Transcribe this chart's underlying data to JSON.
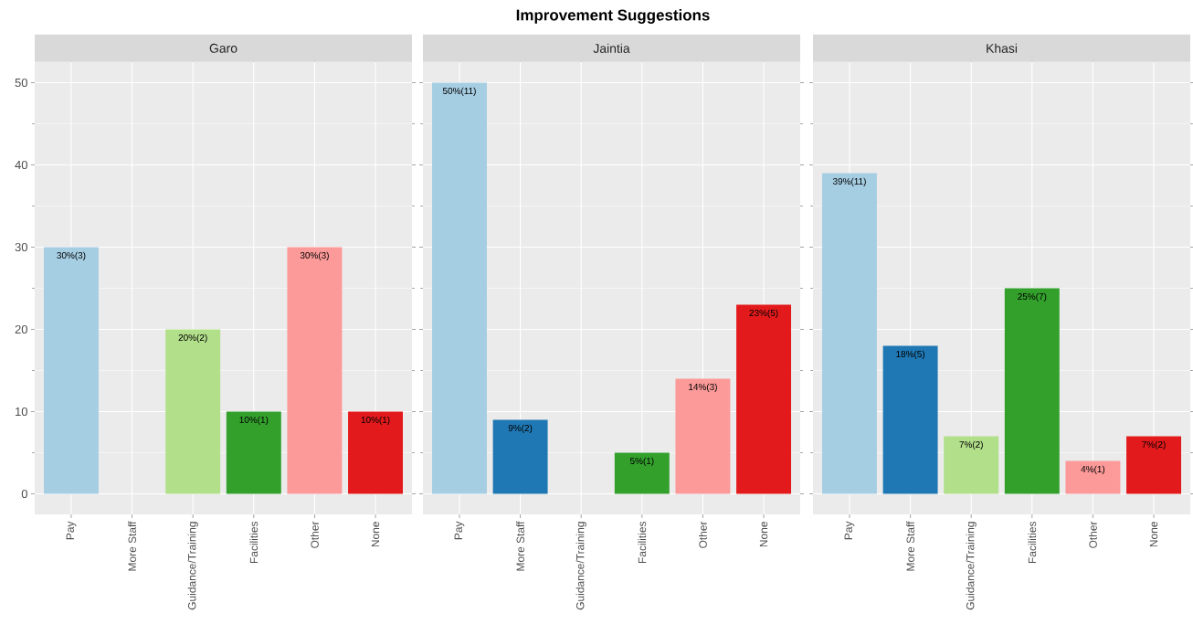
{
  "chart_data": [
    {
      "type": "bar",
      "subtitle": "Garo",
      "categories": [
        "Pay",
        "More Staff",
        "Guidance/Training",
        "Facilities",
        "Other",
        "None"
      ],
      "values": [
        30,
        null,
        20,
        10,
        30,
        10
      ],
      "colors": [
        "#a6cee3",
        "#1f78b4",
        "#b2df8a",
        "#33a02c",
        "#fb9a99",
        "#e31a1c"
      ],
      "value_labels": [
        "30%(3)",
        null,
        "20%(2)",
        "10%(1)",
        "30%(3)",
        "10%(1)"
      ],
      "ylim": [
        -2.5,
        52.5
      ],
      "yticks": [
        0,
        10,
        20,
        30,
        40,
        50
      ],
      "grid": true
    },
    {
      "type": "bar",
      "title": "Improvement Suggestions",
      "subtitle": "Jaintia",
      "categories": [
        "Pay",
        "More Staff",
        "Guidance/Training",
        "Facilities",
        "Other",
        "None"
      ],
      "values": [
        50,
        9,
        null,
        5,
        14,
        23
      ],
      "colors": [
        "#a6cee3",
        "#1f78b4",
        "#b2df8a",
        "#33a02c",
        "#fb9a99",
        "#e31a1c"
      ],
      "value_labels": [
        "50%(11)",
        "9%(2)",
        null,
        "5%(1)",
        "14%(3)",
        "23%(5)"
      ],
      "ylim": [
        -2.5,
        52.5
      ],
      "yticks": [
        0,
        10,
        20,
        30,
        40,
        50
      ],
      "grid": true,
      "tick_labels": "x"
    },
    {
      "type": "bar",
      "subtitle": "Khasi",
      "categories": [
        "Pay",
        "More Staff",
        "Guidance/Training",
        "Facilities",
        "Other",
        "None"
      ],
      "values": [
        39,
        18,
        7,
        25,
        4,
        7
      ],
      "colors": [
        "#a6cee3",
        "#1f78b4",
        "#b2df8a",
        "#33a02c",
        "#fb9a99",
        "#e31a1c"
      ],
      "value_labels": [
        "39%(11)",
        "18%(5)",
        "7%(2)",
        "25%(7)",
        "4%(1)",
        "7%(2)"
      ],
      "ylim": [
        -2.5,
        52.5
      ],
      "yticks": [
        0,
        10,
        20,
        30,
        40,
        50
      ],
      "grid": true,
      "tick_labels": "x"
    }
  ]
}
